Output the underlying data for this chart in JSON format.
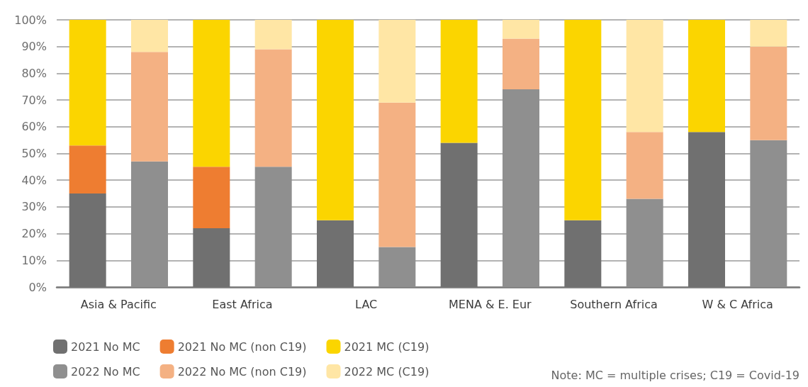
{
  "chart_data": {
    "type": "bar",
    "stacked": true,
    "categories": [
      "Asia & Pacific",
      null,
      "East Africa",
      null,
      "LAC",
      null,
      "MENA & E. Eur",
      null,
      "Southern Africa",
      null,
      "W & C Africa",
      null
    ],
    "series": [
      {
        "name": "2021 No MC",
        "color": "#707070",
        "values": [
          35,
          null,
          22,
          null,
          25,
          null,
          54,
          null,
          25,
          null,
          58,
          null
        ]
      },
      {
        "name": "2021 No MC (non C19)",
        "color": "#ee7d31",
        "values": [
          18,
          null,
          23,
          null,
          0,
          null,
          0,
          null,
          0,
          null,
          0,
          null
        ]
      },
      {
        "name": "2021 MC (C19)",
        "color": "#fbd500",
        "values": [
          47,
          null,
          55,
          null,
          75,
          null,
          46,
          null,
          75,
          null,
          42,
          null
        ]
      },
      {
        "name": "2022 No MC",
        "color": "#8f8f8f",
        "values": [
          null,
          47,
          null,
          45,
          null,
          15,
          null,
          74,
          null,
          33,
          null,
          55
        ]
      },
      {
        "name": "2022 No MC (non C19)",
        "color": "#f4b183",
        "values": [
          null,
          41,
          null,
          44,
          null,
          54,
          null,
          19,
          null,
          25,
          null,
          35
        ]
      },
      {
        "name": "2022 MC (C19)",
        "color": "#ffe6a5",
        "values": [
          null,
          12,
          null,
          11,
          null,
          31,
          null,
          7,
          null,
          42,
          null,
          10
        ]
      }
    ],
    "ylim": [
      0,
      100
    ],
    "yticks": [
      {
        "value": 0,
        "label": "0%"
      },
      {
        "value": 10,
        "label": "10%"
      },
      {
        "value": 20,
        "label": "20%"
      },
      {
        "value": 30,
        "label": "30%"
      },
      {
        "value": 40,
        "label": "40%"
      },
      {
        "value": 50,
        "label": "50%"
      },
      {
        "value": 60,
        "label": "60%"
      },
      {
        "value": 70,
        "label": "70%"
      },
      {
        "value": 80,
        "label": "80%"
      },
      {
        "value": 90,
        "label": "90%"
      },
      {
        "value": 100,
        "label": "100%"
      }
    ],
    "grid": "y",
    "legend": "bottom left",
    "annotations": [
      "Note: MC = multiple crises; C19 = Covid-19"
    ]
  }
}
